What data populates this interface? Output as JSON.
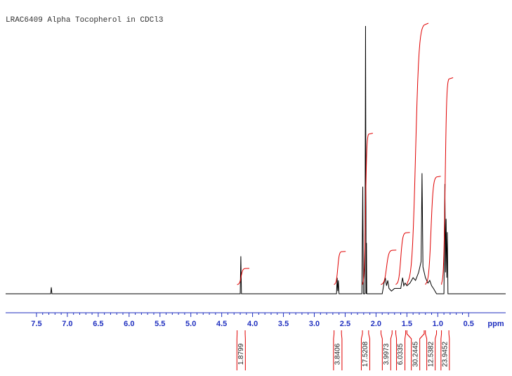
{
  "chart_data": {
    "type": "nmr",
    "title": "LRAC6409 Alpha Tocopherol in CDCl3",
    "x_label": "ppm",
    "xlim": [
      8.0,
      -0.1
    ],
    "ylim": [
      0,
      100
    ],
    "xticks": [
      7.5,
      {
        "value": 7,
        "label": "7.0"
      },
      6.5,
      {
        "value": 6,
        "label": "6.0"
      },
      5.5,
      {
        "value": 5,
        "label": "5.0"
      },
      4.5,
      {
        "value": 4,
        "label": "4.0"
      },
      3.5,
      {
        "value": 3,
        "label": "3.0"
      },
      2.5,
      {
        "value": 2,
        "label": "2.0"
      },
      1.5,
      {
        "value": 1,
        "label": "1.0"
      },
      0.5
    ],
    "series": [
      {
        "name": "spectrum",
        "color": "#000000",
        "x": [
          8.0,
          7.27,
          7.26,
          7.25,
          4.2,
          4.19,
          4.18,
          2.64,
          2.63,
          2.62,
          2.61,
          2.6,
          2.23,
          2.215,
          2.205,
          2.18,
          2.17,
          2.16,
          2.155,
          2.15,
          2.14,
          1.9,
          1.87,
          1.85,
          1.83,
          1.81,
          1.79,
          1.75,
          1.7,
          1.6,
          1.57,
          1.55,
          1.53,
          1.5,
          1.45,
          1.4,
          1.36,
          1.31,
          1.27,
          1.255,
          1.24,
          1.2,
          1.16,
          1.13,
          1.1,
          1.07,
          1.02,
          0.9,
          0.885,
          0.875,
          0.865,
          0.855,
          0.845,
          0.835,
          0.82,
          -0.1
        ],
        "values": [
          0,
          0,
          2.4,
          0,
          0,
          14,
          0,
          0,
          6,
          1,
          5,
          0,
          0,
          40,
          0,
          0,
          100,
          0,
          19,
          0,
          0,
          0,
          4,
          6,
          3,
          5,
          2,
          1,
          2,
          2,
          6,
          3,
          4,
          3,
          4,
          6,
          5,
          8,
          12,
          45,
          10,
          6,
          4,
          5,
          3,
          2,
          0,
          0,
          41,
          8,
          28,
          6,
          23,
          0,
          0,
          0
        ]
      }
    ],
    "integral_color": "#e00000",
    "axis_color": "#1f2fbf",
    "integrals": [
      {
        "from": 4.25,
        "to": 4.12,
        "value": 1.8799
      },
      {
        "from": 2.68,
        "to": 2.56,
        "value": 3.8406
      },
      {
        "from": 2.22,
        "to": 2.12,
        "value": 17.5208
      },
      {
        "from": 1.92,
        "to": 1.74,
        "value": 3.9973
      },
      {
        "from": 1.68,
        "to": 1.52,
        "value": 6.0335
      },
      {
        "from": 1.5,
        "to": 1.22,
        "value": 30.2445
      },
      {
        "from": 1.2,
        "to": 1.02,
        "value": 12.5382
      },
      {
        "from": 0.94,
        "to": 0.82,
        "value": 23.9452
      }
    ]
  }
}
